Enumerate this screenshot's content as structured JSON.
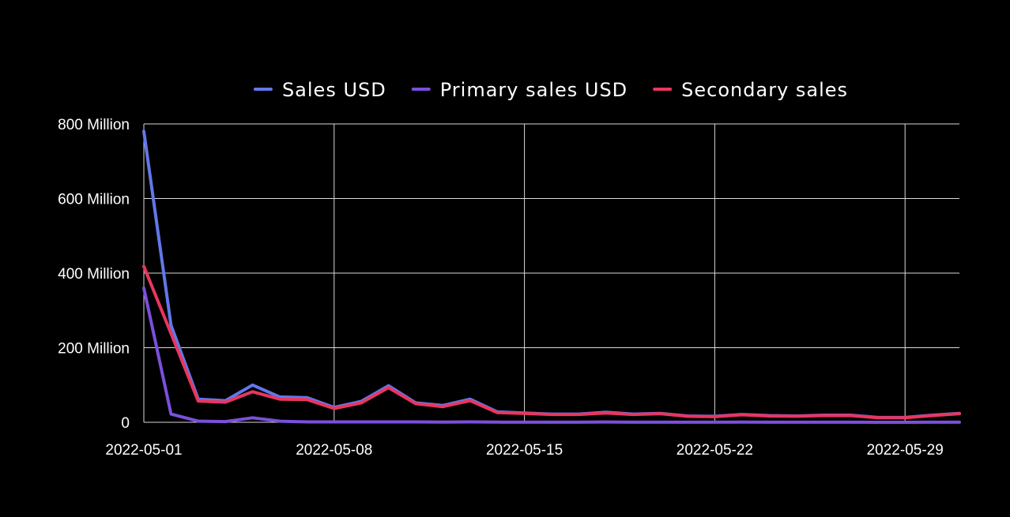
{
  "chart_data": {
    "type": "line",
    "legend_position": "top",
    "grid": true,
    "x_start": "2022-05-01",
    "x_end": "2022-05-31",
    "x_ticks": [
      {
        "date": "2022-05-01",
        "label": "2022-05-01"
      },
      {
        "date": "2022-05-08",
        "label": "2022-05-08"
      },
      {
        "date": "2022-05-15",
        "label": "2022-05-15"
      },
      {
        "date": "2022-05-22",
        "label": "2022-05-22"
      },
      {
        "date": "2022-05-29",
        "label": "2022-05-29"
      }
    ],
    "y_ticks": [
      {
        "value": 0,
        "label": "0"
      },
      {
        "value": 200000000,
        "label": "200 Million"
      },
      {
        "value": 400000000,
        "label": "400 Million"
      },
      {
        "value": 600000000,
        "label": "600 Million"
      },
      {
        "value": 800000000,
        "label": "800 Million"
      }
    ],
    "ylim": [
      0,
      800000000
    ],
    "x": [
      "2022-05-01",
      "2022-05-02",
      "2022-05-03",
      "2022-05-04",
      "2022-05-05",
      "2022-05-06",
      "2022-05-07",
      "2022-05-08",
      "2022-05-09",
      "2022-05-10",
      "2022-05-11",
      "2022-05-12",
      "2022-05-13",
      "2022-05-14",
      "2022-05-15",
      "2022-05-16",
      "2022-05-17",
      "2022-05-18",
      "2022-05-19",
      "2022-05-20",
      "2022-05-21",
      "2022-05-22",
      "2022-05-23",
      "2022-05-24",
      "2022-05-25",
      "2022-05-26",
      "2022-05-27",
      "2022-05-28",
      "2022-05-29",
      "2022-05-30",
      "2022-05-31"
    ],
    "series": [
      {
        "name": "Sales USD",
        "color": "#6377ea",
        "values": [
          780000000,
          260000000,
          62000000,
          58000000,
          100000000,
          68000000,
          66000000,
          40000000,
          56000000,
          98000000,
          52000000,
          45000000,
          62000000,
          28000000,
          25000000,
          22000000,
          22000000,
          27000000,
          22000000,
          24000000,
          17000000,
          16000000,
          21000000,
          18000000,
          17000000,
          19000000,
          19000000,
          13000000,
          13000000,
          19000000,
          24000000
        ]
      },
      {
        "name": "Primary sales USD",
        "color": "#7b4fdc",
        "values": [
          360000000,
          22000000,
          3000000,
          2000000,
          12000000,
          3000000,
          1000000,
          1000000,
          1000000,
          1000000,
          1000000,
          500000,
          1000000,
          500000,
          300000,
          300000,
          300000,
          800000,
          300000,
          300000,
          200000,
          200000,
          400000,
          200000,
          200000,
          200000,
          200000,
          100000,
          100000,
          200000,
          300000
        ]
      },
      {
        "name": "Secondary sales",
        "color": "#e8365f",
        "values": [
          418000000,
          238000000,
          57000000,
          54000000,
          82000000,
          62000000,
          61000000,
          37000000,
          52000000,
          93000000,
          50000000,
          42000000,
          58000000,
          26000000,
          24000000,
          21000000,
          21000000,
          25000000,
          21000000,
          23000000,
          16000000,
          15000000,
          20000000,
          17000000,
          16000000,
          18000000,
          18000000,
          12000000,
          12000000,
          18000000,
          23000000
        ]
      }
    ]
  }
}
